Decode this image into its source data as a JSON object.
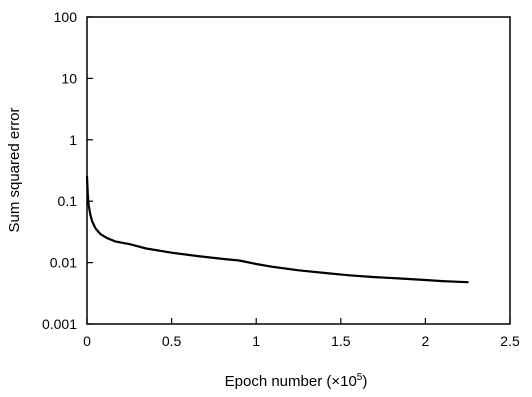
{
  "chart_data": {
    "type": "line",
    "title": "",
    "xlabel": "Epoch number (×10",
    "xlabel_exponent": "5",
    "xlabel_suffix": ")",
    "ylabel": "Sum squared error",
    "xlim": [
      0,
      2.5
    ],
    "ylim": [
      0.001,
      100
    ],
    "y_scale": "log",
    "grid": false,
    "legend": "none",
    "x_ticks": [
      {
        "value": 0,
        "label": "0"
      },
      {
        "value": 0.5,
        "label": "0.5"
      },
      {
        "value": 1,
        "label": "1"
      },
      {
        "value": 1.5,
        "label": "1.5"
      },
      {
        "value": 2,
        "label": "2"
      },
      {
        "value": 2.5,
        "label": "2.5"
      }
    ],
    "y_ticks": [
      {
        "value": 0.001,
        "label": "0.001"
      },
      {
        "value": 0.01,
        "label": "0.01"
      },
      {
        "value": 0.1,
        "label": "0.1"
      },
      {
        "value": 1,
        "label": "1"
      },
      {
        "value": 10,
        "label": "10"
      },
      {
        "value": 100,
        "label": "100"
      }
    ],
    "series": [
      {
        "color": "#000000",
        "x": [
          0.0,
          0.005,
          0.01,
          0.02,
          0.03,
          0.05,
          0.08,
          0.12,
          0.17,
          0.25,
          0.35,
          0.5,
          0.65,
          0.8,
          0.9,
          1.0,
          1.1,
          1.25,
          1.4,
          1.55,
          1.7,
          1.85,
          2.0,
          2.1,
          2.25
        ],
        "y": [
          0.25,
          0.13,
          0.085,
          0.06,
          0.047,
          0.036,
          0.029,
          0.025,
          0.022,
          0.02,
          0.017,
          0.0145,
          0.0128,
          0.0115,
          0.0108,
          0.0095,
          0.0085,
          0.0075,
          0.0068,
          0.0062,
          0.0058,
          0.0055,
          0.0052,
          0.005,
          0.0048
        ]
      }
    ]
  }
}
